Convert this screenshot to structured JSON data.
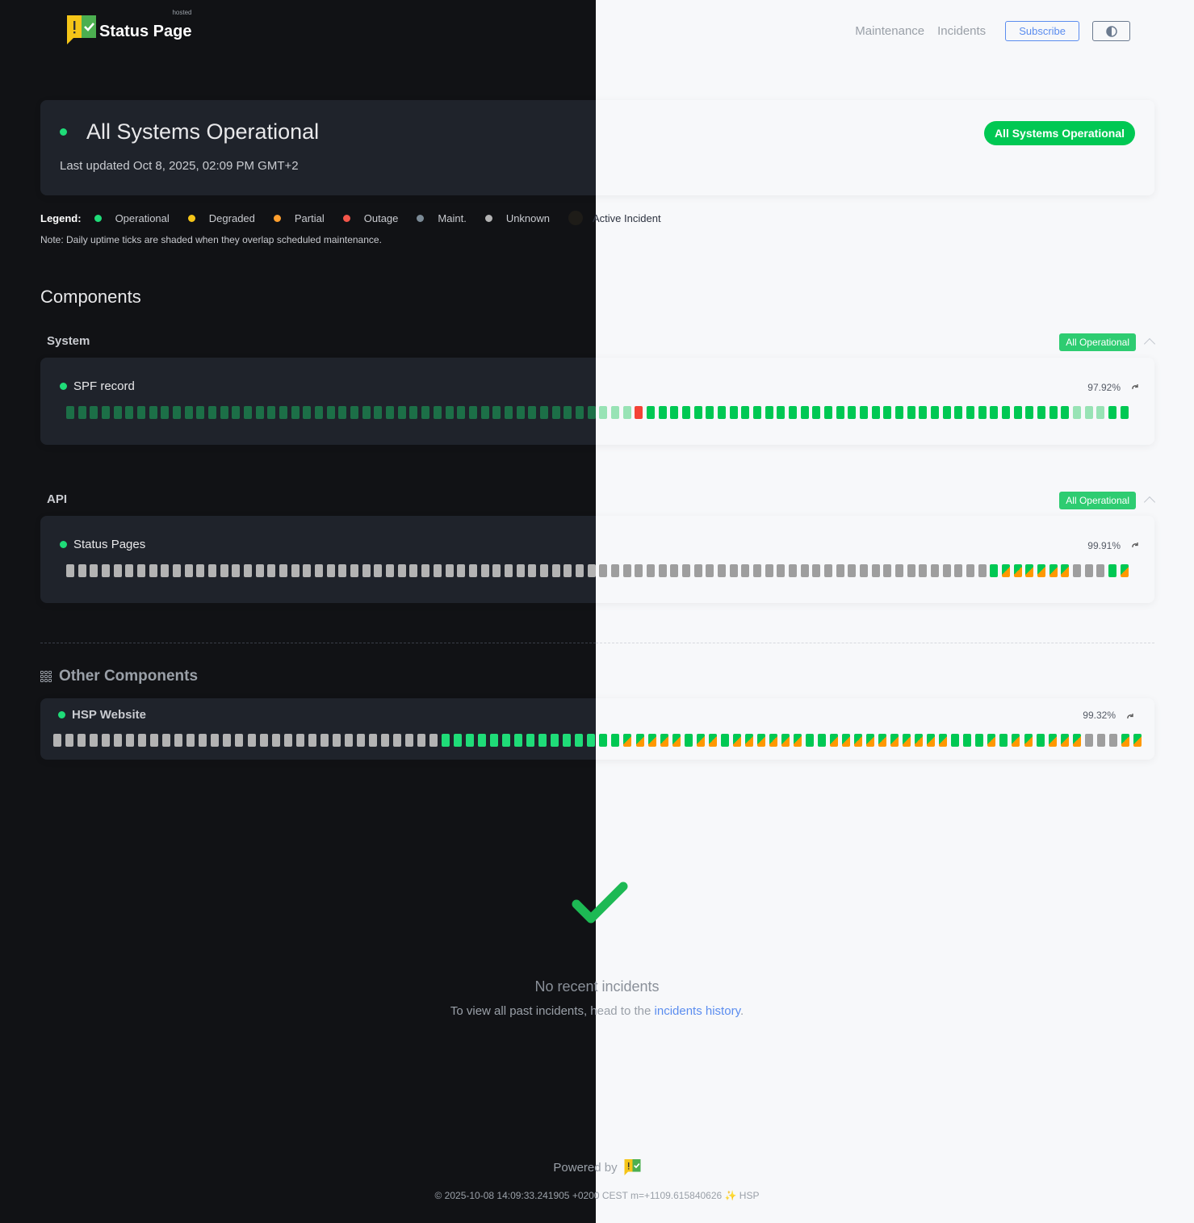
{
  "header": {
    "logo_text": "Status Page",
    "logo_sub": "hosted",
    "nav": [
      "Maintenance",
      "Incidents"
    ],
    "subscribe_label": "Subscribe",
    "theme_toggle_icon": "half-circle-icon"
  },
  "status": {
    "title": "All Systems Operational",
    "last_updated": "Last updated Oct 8, 2025, 02:09 PM GMT+2",
    "badge": "All Systems Operational"
  },
  "legend": {
    "label": "Legend:",
    "items": [
      {
        "label": "Operational",
        "color": "#1fdc78"
      },
      {
        "label": "Degraded",
        "color": "#f5c518"
      },
      {
        "label": "Partial",
        "color": "#ff9f2e"
      },
      {
        "label": "Outage",
        "color": "#f4564a"
      },
      {
        "label": "Maint.",
        "color": "#7b8a96"
      },
      {
        "label": "Unknown",
        "color": "#b3b3b3"
      },
      {
        "label": "Active Incident",
        "color": "#1e1c18"
      }
    ],
    "note": "Note: Daily uptime ticks are shaded when they overlap scheduled maintenance."
  },
  "components": {
    "title": "Components",
    "tick_codes": {
      "O": "operational",
      "S": "operational (maintenance shaded)",
      "X": "outage",
      "U": "unknown",
      "P": "operational / partial"
    },
    "groups": [
      {
        "label": "System",
        "badge": "All Operational",
        "items": [
          {
            "name": "SPF record",
            "uptime": "97.92%",
            "ticks": "SSSSSSSSSSSSSSSSSSSSSSSSSSSSSSSSSSSSSSSSSSSSSSSSXOOOOOOOOOOOOOOOOOOOOOOOOOOOOOOOOOOOOSSSOO"
          }
        ]
      },
      {
        "label": "API",
        "badge": "All Operational",
        "items": [
          {
            "name": "Status Pages",
            "uptime": "99.91%",
            "ticks": "UUUUUUUUUUUUUUUUUUUUUUUUUUUUUUUUUUUUUUUUUUUUUUUUUUUUUUUUUUUUUUUUUUUUUUUUUUUUUUOPPPPPPUUUOP"
          }
        ]
      }
    ],
    "other": {
      "title": "Other Components",
      "items": [
        {
          "name": "HSP Website",
          "uptime": "99.32%",
          "ticks": "UUUUUUUUUUUUUUUUUUUUUUUUUUUUUUUUOOOOOOOOOOOOOOOPPPPPOPPOPPPPPPOOPPPPPPPPPPOOOPOPPOPPPUUUPP"
        }
      ]
    }
  },
  "incidents": {
    "title": "No recent incidents",
    "sub_prefix": "To view all past incidents, head to the ",
    "link": "incidents history",
    "sub_suffix": "."
  },
  "footer": {
    "powered_by": "Powered by",
    "build": "© 2025-10-08 14:09:33.241905 +0200 CEST m=+1109.615840626 ✨ HSP"
  }
}
